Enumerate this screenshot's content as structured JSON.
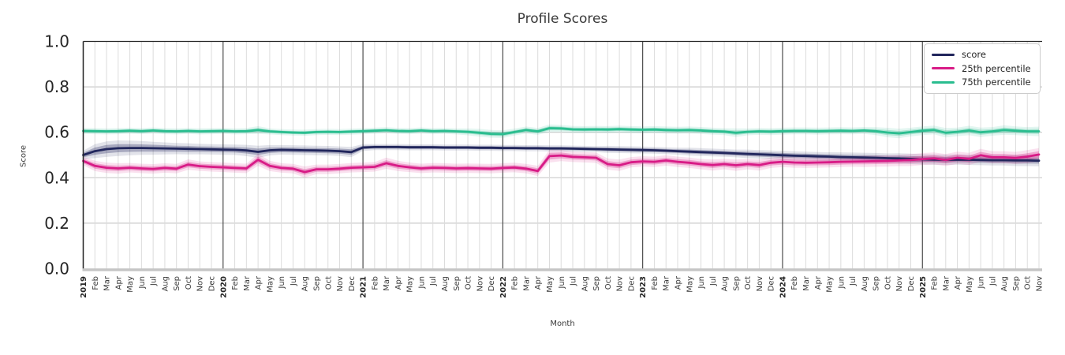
{
  "chart_data": {
    "type": "line",
    "title": "Profile Scores",
    "xlabel": "Month",
    "ylabel": "Score",
    "ylim": [
      0.0,
      1.0
    ],
    "y_ticks": [
      1.0,
      0.8,
      0.6,
      0.4,
      0.2,
      0.0
    ],
    "grid": true,
    "legend_position": "upper right",
    "x_tick_labels": [
      "2019",
      "Feb",
      "Mar",
      "Apr",
      "May",
      "Jun",
      "Jul",
      "Aug",
      "Sep",
      "Oct",
      "Nov",
      "Dec",
      "2020",
      "Feb",
      "Mar",
      "Apr",
      "May",
      "Jun",
      "Jul",
      "Aug",
      "Sep",
      "Oct",
      "Nov",
      "Dec",
      "2021",
      "Feb",
      "Mar",
      "Apr",
      "May",
      "Jun",
      "Jul",
      "Aug",
      "Sep",
      "Oct",
      "Nov",
      "Dec",
      "2022",
      "Feb",
      "Mar",
      "Apr",
      "May",
      "Jun",
      "Jul",
      "Aug",
      "Sep",
      "Oct",
      "Nov",
      "Dec",
      "2023",
      "Feb",
      "Mar",
      "Apr",
      "May",
      "Jun",
      "Jul",
      "Aug",
      "Sep",
      "Oct",
      "Nov",
      "Dec",
      "2024",
      "Feb",
      "Mar",
      "Apr",
      "May",
      "Jun",
      "Jul",
      "Aug",
      "Sep",
      "Oct",
      "Nov",
      "Dec",
      "2025",
      "Feb",
      "Mar",
      "Apr",
      "May",
      "Jun",
      "Jul",
      "Aug",
      "Sep",
      "Oct",
      "Nov"
    ],
    "series": [
      {
        "name": "score",
        "color": "#21265c",
        "values": [
          0.5,
          0.517,
          0.526,
          0.53,
          0.531,
          0.531,
          0.53,
          0.529,
          0.528,
          0.527,
          0.526,
          0.525,
          0.524,
          0.523,
          0.52,
          0.514,
          0.521,
          0.523,
          0.522,
          0.521,
          0.52,
          0.519,
          0.517,
          0.513,
          0.533,
          0.535,
          0.535,
          0.535,
          0.534,
          0.534,
          0.534,
          0.533,
          0.533,
          0.533,
          0.532,
          0.532,
          0.531,
          0.531,
          0.53,
          0.53,
          0.529,
          0.529,
          0.528,
          0.527,
          0.526,
          0.525,
          0.524,
          0.523,
          0.522,
          0.521,
          0.519,
          0.517,
          0.515,
          0.513,
          0.511,
          0.509,
          0.507,
          0.505,
          0.503,
          0.501,
          0.499,
          0.497,
          0.496,
          0.494,
          0.493,
          0.491,
          0.49,
          0.489,
          0.488,
          0.486,
          0.485,
          0.483,
          0.481,
          0.48,
          0.479,
          0.48,
          0.479,
          0.478,
          0.477,
          0.477,
          0.476,
          0.476,
          0.475
        ],
        "band_halfwidth": [
          0.01,
          0.016,
          0.018,
          0.018,
          0.017,
          0.016,
          0.015,
          0.014,
          0.013,
          0.013,
          0.012,
          0.012,
          0.012,
          0.012,
          0.013,
          0.014,
          0.012,
          0.011,
          0.011,
          0.011,
          0.011,
          0.011,
          0.011,
          0.012,
          0.008,
          0.007,
          0.007,
          0.007,
          0.007,
          0.007,
          0.007,
          0.007,
          0.007,
          0.007,
          0.007,
          0.007,
          0.007,
          0.007,
          0.007,
          0.007,
          0.007,
          0.007,
          0.007,
          0.007,
          0.007,
          0.008,
          0.008,
          0.008,
          0.008,
          0.008,
          0.008,
          0.008,
          0.009,
          0.009,
          0.009,
          0.009,
          0.009,
          0.01,
          0.01,
          0.01,
          0.01,
          0.01,
          0.01,
          0.01,
          0.01,
          0.011,
          0.011,
          0.011,
          0.011,
          0.011,
          0.012,
          0.012,
          0.012,
          0.012,
          0.012,
          0.012,
          0.012,
          0.012,
          0.012,
          0.012,
          0.013,
          0.013,
          0.013
        ]
      },
      {
        "name": "25th percentile",
        "color": "#d81b86",
        "values": [
          0.474,
          0.452,
          0.444,
          0.441,
          0.444,
          0.441,
          0.439,
          0.443,
          0.44,
          0.458,
          0.451,
          0.448,
          0.446,
          0.443,
          0.441,
          0.479,
          0.452,
          0.443,
          0.44,
          0.425,
          0.437,
          0.437,
          0.44,
          0.444,
          0.446,
          0.448,
          0.464,
          0.452,
          0.446,
          0.441,
          0.444,
          0.443,
          0.441,
          0.442,
          0.441,
          0.44,
          0.443,
          0.445,
          0.44,
          0.43,
          0.495,
          0.498,
          0.492,
          0.49,
          0.488,
          0.46,
          0.455,
          0.468,
          0.472,
          0.47,
          0.476,
          0.47,
          0.466,
          0.46,
          0.456,
          0.46,
          0.455,
          0.46,
          0.456,
          0.466,
          0.47,
          0.467,
          0.466,
          0.467,
          0.468,
          0.47,
          0.471,
          0.472,
          0.473,
          0.474,
          0.476,
          0.478,
          0.482,
          0.485,
          0.478,
          0.488,
          0.483,
          0.499,
          0.49,
          0.49,
          0.487,
          0.493,
          0.502
        ],
        "band_halfwidth": [
          0.01,
          0.012,
          0.012,
          0.012,
          0.011,
          0.011,
          0.011,
          0.011,
          0.011,
          0.012,
          0.011,
          0.011,
          0.011,
          0.011,
          0.011,
          0.014,
          0.012,
          0.011,
          0.011,
          0.013,
          0.011,
          0.011,
          0.011,
          0.011,
          0.011,
          0.011,
          0.013,
          0.012,
          0.011,
          0.011,
          0.011,
          0.011,
          0.011,
          0.011,
          0.011,
          0.011,
          0.011,
          0.011,
          0.011,
          0.012,
          0.015,
          0.013,
          0.012,
          0.012,
          0.012,
          0.013,
          0.013,
          0.012,
          0.012,
          0.012,
          0.012,
          0.012,
          0.012,
          0.012,
          0.013,
          0.012,
          0.013,
          0.012,
          0.013,
          0.012,
          0.012,
          0.012,
          0.012,
          0.012,
          0.012,
          0.012,
          0.012,
          0.013,
          0.013,
          0.013,
          0.013,
          0.014,
          0.014,
          0.014,
          0.014,
          0.014,
          0.014,
          0.015,
          0.014,
          0.014,
          0.014,
          0.015,
          0.015
        ]
      },
      {
        "name": "75th percentile",
        "color": "#2abd8f",
        "values": [
          0.606,
          0.605,
          0.604,
          0.605,
          0.607,
          0.605,
          0.608,
          0.605,
          0.604,
          0.606,
          0.604,
          0.605,
          0.606,
          0.604,
          0.605,
          0.61,
          0.604,
          0.601,
          0.599,
          0.598,
          0.601,
          0.602,
          0.601,
          0.603,
          0.605,
          0.607,
          0.609,
          0.606,
          0.605,
          0.608,
          0.605,
          0.606,
          0.604,
          0.602,
          0.598,
          0.593,
          0.592,
          0.601,
          0.61,
          0.604,
          0.618,
          0.617,
          0.613,
          0.612,
          0.613,
          0.612,
          0.614,
          0.612,
          0.611,
          0.612,
          0.61,
          0.609,
          0.61,
          0.608,
          0.605,
          0.603,
          0.598,
          0.602,
          0.604,
          0.603,
          0.605,
          0.606,
          0.606,
          0.605,
          0.606,
          0.607,
          0.606,
          0.608,
          0.605,
          0.599,
          0.595,
          0.601,
          0.607,
          0.61,
          0.598,
          0.602,
          0.608,
          0.6,
          0.604,
          0.61,
          0.607,
          0.604,
          0.604
        ],
        "band_halfwidth": [
          0.007,
          0.007,
          0.007,
          0.007,
          0.007,
          0.007,
          0.007,
          0.007,
          0.007,
          0.007,
          0.007,
          0.007,
          0.007,
          0.007,
          0.007,
          0.009,
          0.007,
          0.007,
          0.007,
          0.007,
          0.007,
          0.007,
          0.007,
          0.007,
          0.007,
          0.007,
          0.007,
          0.007,
          0.007,
          0.007,
          0.007,
          0.007,
          0.007,
          0.008,
          0.009,
          0.009,
          0.009,
          0.008,
          0.008,
          0.008,
          0.009,
          0.008,
          0.008,
          0.008,
          0.008,
          0.008,
          0.008,
          0.008,
          0.008,
          0.008,
          0.008,
          0.008,
          0.008,
          0.008,
          0.008,
          0.008,
          0.01,
          0.008,
          0.008,
          0.008,
          0.008,
          0.008,
          0.008,
          0.008,
          0.008,
          0.008,
          0.008,
          0.008,
          0.009,
          0.011,
          0.011,
          0.01,
          0.01,
          0.01,
          0.011,
          0.01,
          0.011,
          0.011,
          0.01,
          0.011,
          0.01,
          0.01,
          0.011
        ]
      }
    ]
  }
}
